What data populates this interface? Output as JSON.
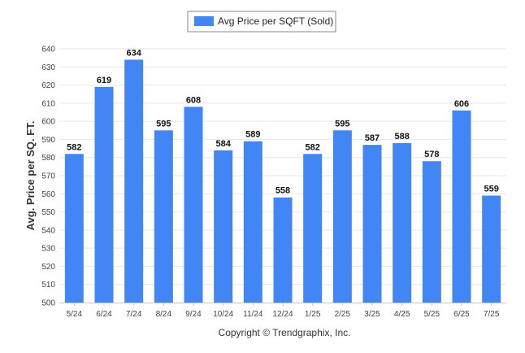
{
  "chart_data": {
    "type": "bar",
    "categories": [
      "5/24",
      "6/24",
      "7/24",
      "8/24",
      "9/24",
      "10/24",
      "11/24",
      "12/24",
      "1/25",
      "2/25",
      "3/25",
      "4/25",
      "5/25",
      "6/25",
      "7/25"
    ],
    "series": [
      {
        "name": "Avg Price per SQFT (Sold)",
        "values": [
          582,
          619,
          634,
          595,
          608,
          584,
          589,
          558,
          582,
          595,
          587,
          588,
          578,
          606,
          559
        ],
        "color": "#4285f4"
      }
    ],
    "ylabel": "Avg. Price per SQ. FT.",
    "xlabel": "",
    "ylim": [
      500,
      640
    ],
    "ytick_step": 10,
    "grid": true,
    "legend_position": "top-center"
  },
  "footer": {
    "copyright": "Copyright © Trendgraphix, Inc."
  }
}
